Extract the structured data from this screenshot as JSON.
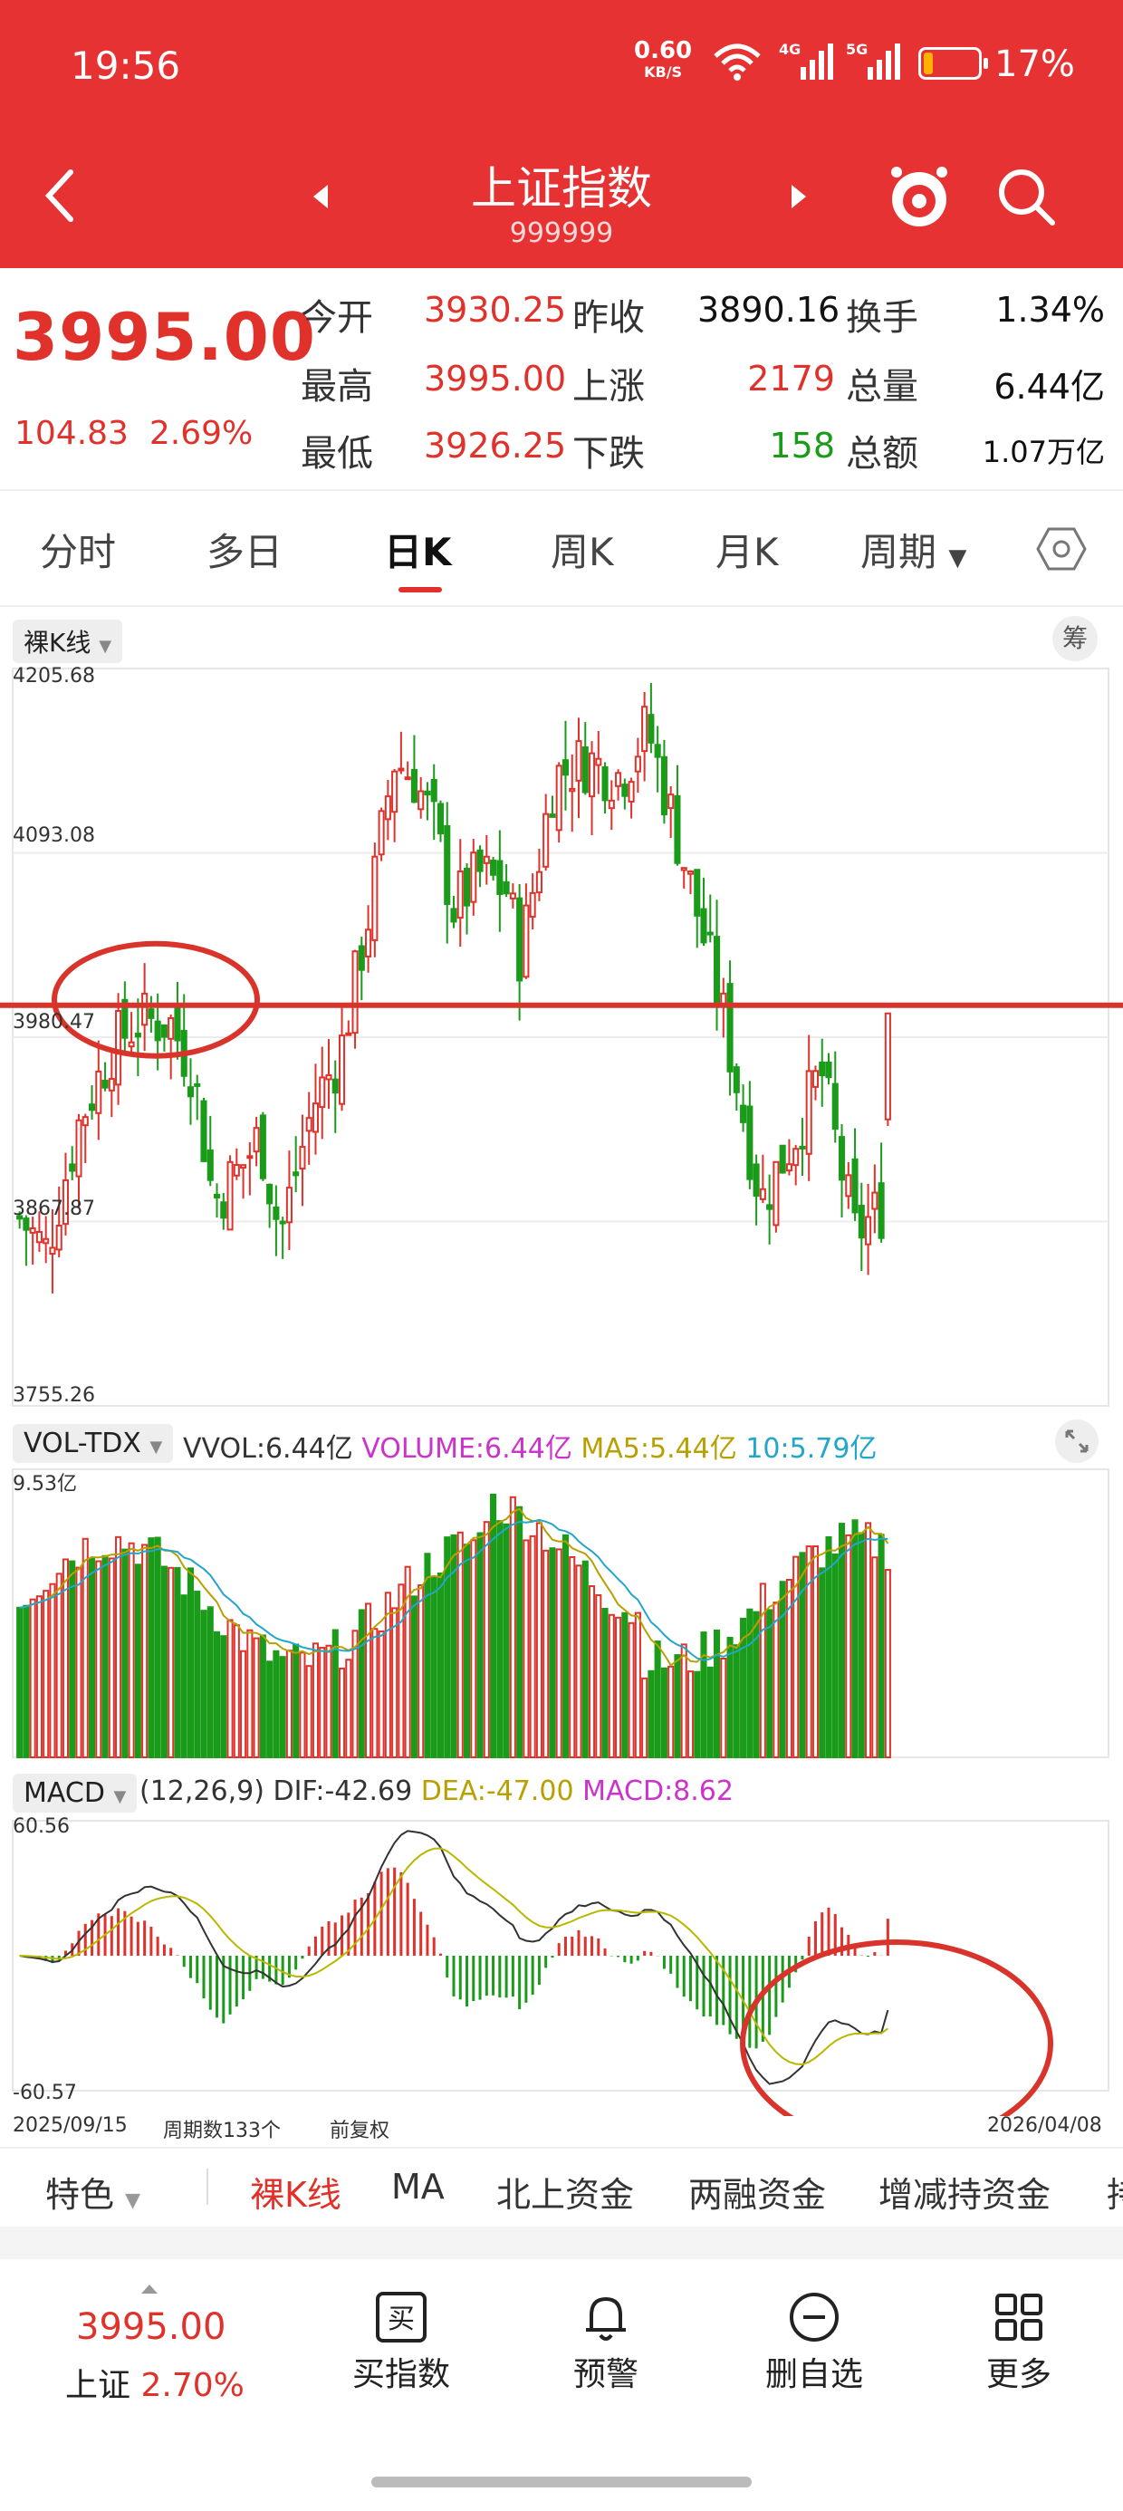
{
  "status": {
    "time": "19:56",
    "net_speed": "0.60",
    "net_unit": "KB/S",
    "sig1": "4G",
    "sig2": "5G",
    "battery": "17%"
  },
  "header": {
    "title": "上证指数",
    "code": "999999",
    "icons": [
      "back-icon",
      "prev-arrow-icon",
      "next-arrow-icon",
      "mascot-icon",
      "search-icon"
    ]
  },
  "quote": {
    "price": "3995.00",
    "change": "104.83",
    "change_pct": "2.69%",
    "open_label": "今开",
    "open": "3930.25",
    "prev_label": "昨收",
    "prev": "3890.16",
    "turnover_label": "换手",
    "turnover": "1.34%",
    "high_label": "最高",
    "high": "3995.00",
    "up_label": "上涨",
    "up": "2179",
    "vol_label": "总量",
    "vol": "6.44亿",
    "low_label": "最低",
    "low": "3926.25",
    "down_label": "下跌",
    "down": "158",
    "amt_label": "总额",
    "amt": "1.07万亿"
  },
  "tabs": {
    "t1": "分时",
    "t2": "多日",
    "t3": "日K",
    "t4": "周K",
    "t5": "月K",
    "t6": "周期"
  },
  "kline": {
    "mode": "裸K线",
    "chip_btn": "筹",
    "y_top": "4205.68",
    "y2": "4093.08",
    "y3": "3980.47",
    "y4": "3867.87",
    "y_bottom": "3755.26"
  },
  "volume": {
    "name": "VOL-TDX",
    "vvol": "VVOL:6.44亿",
    "volume": "VOLUME:6.44亿",
    "ma5": "MA5:5.44亿",
    "ma10": "10:5.79亿",
    "ymax": "9.53亿"
  },
  "macd": {
    "name": "MACD",
    "params": "(12,26,9)",
    "dif": "DIF:-42.69",
    "dea": "DEA:-47.00",
    "macd": "MACD:8.62",
    "ymax": "60.56",
    "ymin": "-60.57"
  },
  "footer_axis": {
    "start": "2025/09/15",
    "count": "周期数133个",
    "adj": "前复权",
    "end": "2026/04/08"
  },
  "bottom_tabs": {
    "b1": "特色",
    "b2": "裸K线",
    "b3": "MA",
    "b4": "北上资金",
    "b5": "两融资金",
    "b6": "增减持资金",
    "b7": "持"
  },
  "bottom_nav": {
    "price": "3995.00",
    "name": "上证",
    "pct": "2.70%",
    "n1": "买指数",
    "n2": "预警",
    "n3": "删自选",
    "n4": "更多"
  },
  "colors": {
    "brand": "#e63232",
    "up": "#e0322b",
    "down": "#1a9b1a",
    "dif": "#333333",
    "dea": "#b8b800",
    "volume": "#cc33cc",
    "ma10": "#22a6c9"
  },
  "chart_data": {
    "type": "candlestick",
    "ylim": [
      3755.26,
      4205.68
    ],
    "count": 133,
    "start": "2025/09/15",
    "end": "2026/04/08",
    "hline": 4000
  }
}
